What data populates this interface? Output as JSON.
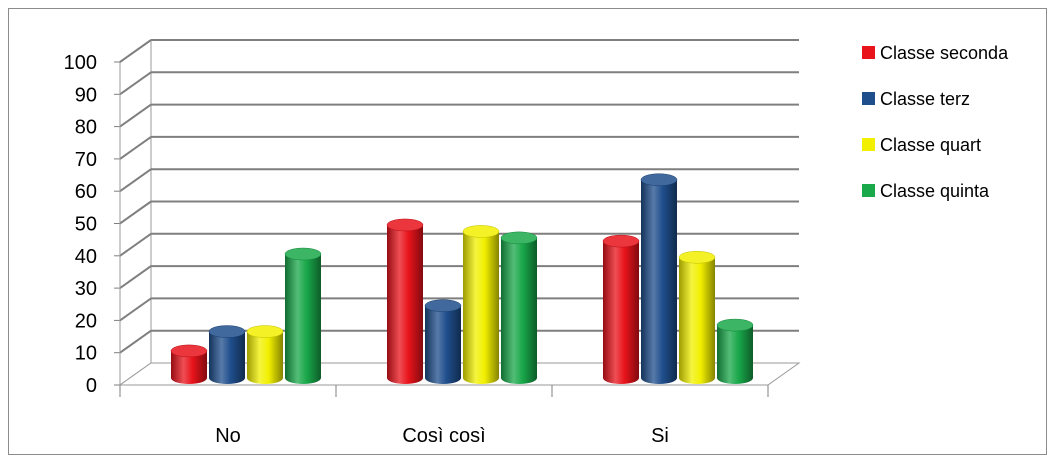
{
  "chart_data": {
    "type": "bar",
    "title": "",
    "xlabel": "",
    "ylabel": "",
    "ylim": [
      0,
      100
    ],
    "yticks": [
      "0",
      "10",
      "20",
      "30",
      "40",
      "50",
      "60",
      "70",
      "80",
      "90",
      "100"
    ],
    "categories": [
      "No",
      "Così così",
      "Si"
    ],
    "series": [
      {
        "name": "Classe seconda",
        "color": "#e8131b",
        "values": [
          9,
          48,
          43
        ]
      },
      {
        "name": "Classe terz",
        "color": "#1f4e8c",
        "values": [
          15,
          23,
          62
        ]
      },
      {
        "name": "Classe quart",
        "color": "#f2f000",
        "values": [
          15,
          46,
          38
        ]
      },
      {
        "name": "Classe quinta",
        "color": "#19a84a",
        "values": [
          39,
          44,
          17
        ]
      }
    ],
    "grid": true,
    "legend": "right"
  }
}
